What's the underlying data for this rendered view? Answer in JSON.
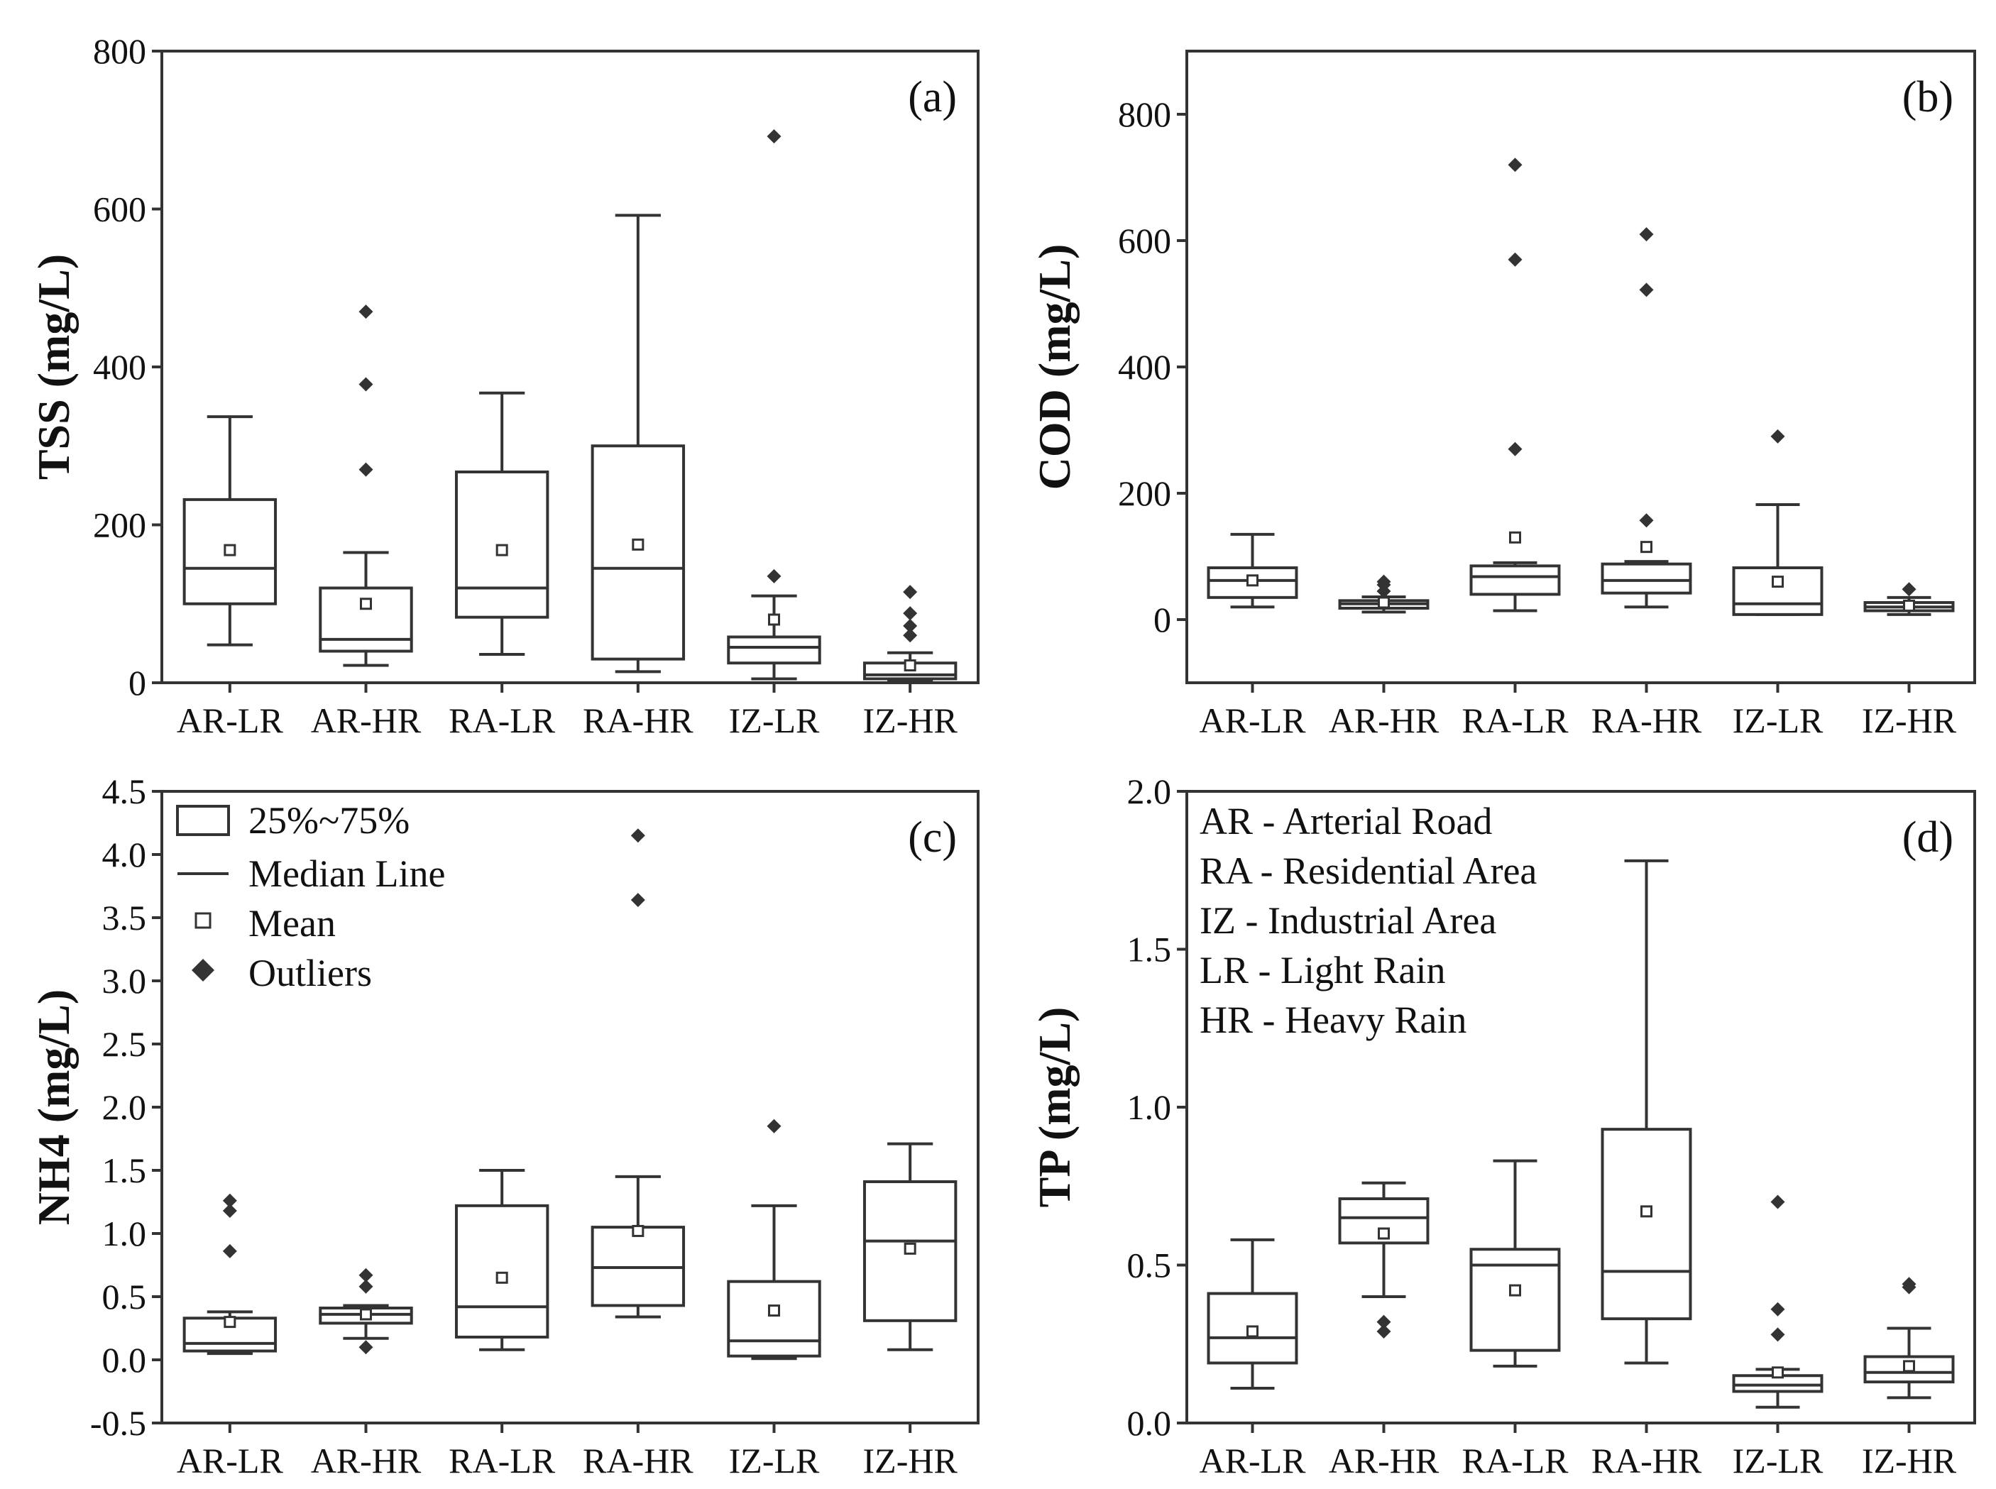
{
  "chart_data": [
    {
      "type": "box",
      "panel_label": "(a)",
      "ylabel": "TSS (mg/L)",
      "ylim": [
        0,
        800
      ],
      "yticks": [
        "0",
        "200",
        "400",
        "600",
        "800"
      ],
      "ytick_values": [
        0,
        200,
        400,
        600,
        800
      ],
      "categories": [
        "AR-LR",
        "AR-HR",
        "RA-LR",
        "RA-HR",
        "IZ-LR",
        "IZ-HR"
      ],
      "boxes": [
        {
          "category": "AR-LR",
          "whisker_low": 48,
          "q1": 100,
          "median": 145,
          "q3": 232,
          "whisker_high": 337,
          "mean": 168,
          "outliers": []
        },
        {
          "category": "AR-HR",
          "whisker_low": 22,
          "q1": 40,
          "median": 55,
          "q3": 120,
          "whisker_high": 165,
          "mean": 100,
          "outliers": [
            270,
            378,
            470
          ]
        },
        {
          "category": "RA-LR",
          "whisker_low": 36,
          "q1": 83,
          "median": 120,
          "q3": 267,
          "whisker_high": 367,
          "mean": 168,
          "outliers": []
        },
        {
          "category": "RA-HR",
          "whisker_low": 14,
          "q1": 30,
          "median": 145,
          "q3": 300,
          "whisker_high": 592,
          "mean": 175,
          "outliers": []
        },
        {
          "category": "IZ-LR",
          "whisker_low": 5,
          "q1": 25,
          "median": 45,
          "q3": 58,
          "whisker_high": 110,
          "mean": 80,
          "outliers": [
            135,
            692
          ]
        },
        {
          "category": "IZ-HR",
          "whisker_low": 2,
          "q1": 5,
          "median": 10,
          "q3": 25,
          "whisker_high": 38,
          "mean": 22,
          "outliers": [
            60,
            72,
            88,
            115
          ]
        }
      ]
    },
    {
      "type": "box",
      "panel_label": "(b)",
      "ylabel": "COD (mg/L)",
      "ylim": [
        -100,
        900
      ],
      "yticks": [
        "0",
        "200",
        "400",
        "600",
        "800"
      ],
      "ytick_values": [
        0,
        200,
        400,
        600,
        800
      ],
      "categories": [
        "AR-LR",
        "AR-HR",
        "RA-LR",
        "RA-HR",
        "IZ-LR",
        "IZ-HR"
      ],
      "boxes": [
        {
          "category": "AR-LR",
          "whisker_low": 20,
          "q1": 35,
          "median": 62,
          "q3": 82,
          "whisker_high": 135,
          "mean": 62,
          "outliers": []
        },
        {
          "category": "AR-HR",
          "whisker_low": 12,
          "q1": 18,
          "median": 25,
          "q3": 30,
          "whisker_high": 36,
          "mean": 27,
          "outliers": [
            45,
            55,
            60
          ]
        },
        {
          "category": "RA-LR",
          "whisker_low": 14,
          "q1": 40,
          "median": 68,
          "q3": 85,
          "whisker_high": 90,
          "mean": 130,
          "outliers": [
            270,
            570,
            720
          ]
        },
        {
          "category": "RA-HR",
          "whisker_low": 20,
          "q1": 42,
          "median": 62,
          "q3": 88,
          "whisker_high": 92,
          "mean": 115,
          "outliers": [
            157,
            522,
            610
          ]
        },
        {
          "category": "IZ-LR",
          "whisker_low": 8,
          "q1": 8,
          "median": 25,
          "q3": 82,
          "whisker_high": 182,
          "mean": 60,
          "outliers": [
            290
          ]
        },
        {
          "category": "IZ-HR",
          "whisker_low": 8,
          "q1": 14,
          "median": 20,
          "q3": 27,
          "whisker_high": 35,
          "mean": 22,
          "outliers": [
            48
          ]
        }
      ]
    },
    {
      "type": "box",
      "panel_label": "(c)",
      "ylabel": "NH4 (mg/L)",
      "ylim": [
        -0.5,
        4.5
      ],
      "yticks": [
        "-0.5",
        "0.0",
        "0.5",
        "1.0",
        "1.5",
        "2.0",
        "2.5",
        "3.0",
        "3.5",
        "4.0",
        "4.5"
      ],
      "ytick_values": [
        -0.5,
        0,
        0.5,
        1,
        1.5,
        2,
        2.5,
        3,
        3.5,
        4,
        4.5
      ],
      "categories": [
        "AR-LR",
        "AR-HR",
        "RA-LR",
        "RA-HR",
        "IZ-LR",
        "IZ-HR"
      ],
      "boxes": [
        {
          "category": "AR-LR",
          "whisker_low": 0.05,
          "q1": 0.07,
          "median": 0.13,
          "q3": 0.33,
          "whisker_high": 0.38,
          "mean": 0.3,
          "outliers": [
            0.86,
            1.18,
            1.26
          ]
        },
        {
          "category": "AR-HR",
          "whisker_low": 0.17,
          "q1": 0.29,
          "median": 0.36,
          "q3": 0.41,
          "whisker_high": 0.43,
          "mean": 0.36,
          "outliers": [
            0.1,
            0.58,
            0.67
          ]
        },
        {
          "category": "RA-LR",
          "whisker_low": 0.08,
          "q1": 0.18,
          "median": 0.42,
          "q3": 1.22,
          "whisker_high": 1.5,
          "mean": 0.65,
          "outliers": []
        },
        {
          "category": "RA-HR",
          "whisker_low": 0.34,
          "q1": 0.43,
          "median": 0.73,
          "q3": 1.05,
          "whisker_high": 1.45,
          "mean": 1.02,
          "outliers": [
            3.64,
            4.15
          ]
        },
        {
          "category": "IZ-LR",
          "whisker_low": 0.01,
          "q1": 0.03,
          "median": 0.15,
          "q3": 0.62,
          "whisker_high": 1.22,
          "mean": 0.39,
          "outliers": [
            1.85
          ]
        },
        {
          "category": "IZ-HR",
          "whisker_low": 0.08,
          "q1": 0.31,
          "median": 0.94,
          "q3": 1.41,
          "whisker_high": 1.71,
          "mean": 0.88,
          "outliers": []
        }
      ],
      "legend": {
        "position": "top-left",
        "items": [
          {
            "symbol": "box",
            "label": "25%~75%"
          },
          {
            "symbol": "line",
            "label": "Median Line"
          },
          {
            "symbol": "open-square",
            "label": "Mean"
          },
          {
            "symbol": "filled-diamond",
            "label": "Outliers"
          }
        ]
      }
    },
    {
      "type": "box",
      "panel_label": "(d)",
      "ylabel": "TP (mg/L)",
      "ylim": [
        0,
        2.0
      ],
      "yticks": [
        "0.0",
        "0.5",
        "1.0",
        "1.5",
        "2.0"
      ],
      "ytick_values": [
        0,
        0.5,
        1,
        1.5,
        2
      ],
      "categories": [
        "AR-LR",
        "AR-HR",
        "RA-LR",
        "RA-HR",
        "IZ-LR",
        "IZ-HR"
      ],
      "boxes": [
        {
          "category": "AR-LR",
          "whisker_low": 0.11,
          "q1": 0.19,
          "median": 0.27,
          "q3": 0.41,
          "whisker_high": 0.58,
          "mean": 0.29,
          "outliers": []
        },
        {
          "category": "AR-HR",
          "whisker_low": 0.4,
          "q1": 0.57,
          "median": 0.65,
          "q3": 0.71,
          "whisker_high": 0.76,
          "mean": 0.6,
          "outliers": [
            0.29,
            0.32
          ]
        },
        {
          "category": "RA-LR",
          "whisker_low": 0.18,
          "q1": 0.23,
          "median": 0.5,
          "q3": 0.55,
          "whisker_high": 0.83,
          "mean": 0.42,
          "outliers": []
        },
        {
          "category": "RA-HR",
          "whisker_low": 0.19,
          "q1": 0.33,
          "median": 0.48,
          "q3": 0.93,
          "whisker_high": 1.78,
          "mean": 0.67,
          "outliers": []
        },
        {
          "category": "IZ-LR",
          "whisker_low": 0.05,
          "q1": 0.1,
          "median": 0.12,
          "q3": 0.15,
          "whisker_high": 0.17,
          "mean": 0.16,
          "outliers": [
            0.28,
            0.36,
            0.7
          ]
        },
        {
          "category": "IZ-HR",
          "whisker_low": 0.08,
          "q1": 0.13,
          "median": 0.16,
          "q3": 0.21,
          "whisker_high": 0.3,
          "mean": 0.18,
          "outliers": [
            0.43,
            0.44
          ]
        }
      ],
      "annotation_lines": [
        "AR - Arterial Road",
        "RA - Residential Area",
        "IZ - Industrial Area",
        "LR - Light Rain",
        "HR - Heavy Rain"
      ]
    }
  ]
}
